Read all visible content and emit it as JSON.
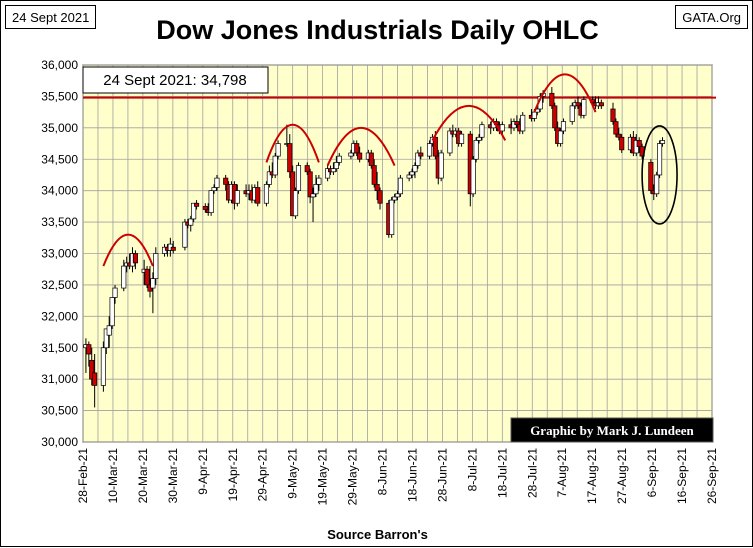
{
  "header": {
    "date": "24 Sept 2021",
    "site": "GATA.Org",
    "title": "Dow Jones Industrials Daily OHLC"
  },
  "annotations": {
    "price_label": "24 Sept 2021: 34,798",
    "credit": "Graphic by Mark J. Lundeen",
    "source": "Source Barron's"
  },
  "colors": {
    "plot_bg": "#ffffcc",
    "grid": "#a0a0a0",
    "up_candle": "#ffffff",
    "down_candle": "#cc0000",
    "candle_edge": "#000000",
    "arc": "#cc0000",
    "resistance_line": "#cc0000",
    "credit_bg": "#000000",
    "credit_text": "#ffffff"
  },
  "chart_data": {
    "type": "ohlc-candlestick",
    "title": "Dow Jones Industrials Daily OHLC",
    "xlabel": "Source Barron's",
    "ylabel": "",
    "ylim": [
      30000,
      36000
    ],
    "y_ticks": [
      "30,000",
      "30,500",
      "31,000",
      "31,500",
      "32,000",
      "32,500",
      "33,000",
      "33,500",
      "34,000",
      "34,500",
      "35,000",
      "35,500",
      "36,000"
    ],
    "y_tick_values": [
      30000,
      30500,
      31000,
      31500,
      32000,
      32500,
      33000,
      33500,
      34000,
      34500,
      35000,
      35500,
      36000
    ],
    "x_ticks": [
      "28-Feb-21",
      "10-Mar-21",
      "20-Mar-21",
      "30-Mar-21",
      "9-Apr-21",
      "19-Apr-21",
      "29-Apr-21",
      "9-May-21",
      "19-May-21",
      "29-May-21",
      "8-Jun-21",
      "18-Jun-21",
      "28-Jun-21",
      "8-Jul-21",
      "18-Jul-21",
      "28-Jul-21",
      "7-Aug-21",
      "17-Aug-21",
      "27-Aug-21",
      "6-Sep-21",
      "16-Sep-21",
      "26-Sep-21"
    ],
    "x_range_days": [
      0,
      216
    ],
    "resistance_level": 35480,
    "last_close": 34798,
    "candles": [
      {
        "d": 1,
        "o": 31500,
        "h": 31650,
        "l": 31100,
        "c": 31550
      },
      {
        "d": 2,
        "o": 31550,
        "h": 31600,
        "l": 31200,
        "c": 31400
      },
      {
        "d": 3,
        "o": 31300,
        "h": 31500,
        "l": 30900,
        "c": 31000
      },
      {
        "d": 4,
        "o": 31100,
        "h": 31400,
        "l": 30550,
        "c": 30900
      },
      {
        "d": 7,
        "o": 30900,
        "h": 31600,
        "l": 30800,
        "c": 31500
      },
      {
        "d": 8,
        "o": 31500,
        "h": 31800,
        "l": 31400,
        "c": 31800
      },
      {
        "d": 9,
        "o": 31700,
        "h": 32000,
        "l": 31500,
        "c": 31850
      },
      {
        "d": 10,
        "o": 31850,
        "h": 32300,
        "l": 31800,
        "c": 32300
      },
      {
        "d": 11,
        "o": 32300,
        "h": 32500,
        "l": 32200,
        "c": 32450
      },
      {
        "d": 14,
        "o": 32450,
        "h": 32900,
        "l": 32400,
        "c": 32800
      },
      {
        "d": 15,
        "o": 32800,
        "h": 32950,
        "l": 32700,
        "c": 32850
      },
      {
        "d": 16,
        "o": 32850,
        "h": 33000,
        "l": 32750,
        "c": 32800
      },
      {
        "d": 17,
        "o": 32800,
        "h": 33100,
        "l": 32700,
        "c": 33000
      },
      {
        "d": 18,
        "o": 33000,
        "h": 33050,
        "l": 32750,
        "c": 32850
      },
      {
        "d": 21,
        "o": 32700,
        "h": 32900,
        "l": 32500,
        "c": 32750
      },
      {
        "d": 22,
        "o": 32750,
        "h": 32800,
        "l": 32450,
        "c": 32500
      },
      {
        "d": 23,
        "o": 32500,
        "h": 32800,
        "l": 32300,
        "c": 32400
      },
      {
        "d": 24,
        "o": 32450,
        "h": 32700,
        "l": 32050,
        "c": 32600
      },
      {
        "d": 25,
        "o": 32600,
        "h": 33100,
        "l": 32500,
        "c": 33000
      },
      {
        "d": 28,
        "o": 33000,
        "h": 33150,
        "l": 32950,
        "c": 33100
      },
      {
        "d": 29,
        "o": 33100,
        "h": 33150,
        "l": 32950,
        "c": 33050
      },
      {
        "d": 30,
        "o": 33050,
        "h": 33250,
        "l": 32950,
        "c": 33150
      },
      {
        "d": 31,
        "o": 33100,
        "h": 33200,
        "l": 33000,
        "c": 33050
      },
      {
        "d": 35,
        "o": 33100,
        "h": 33550,
        "l": 33050,
        "c": 33500
      },
      {
        "d": 36,
        "o": 33500,
        "h": 33550,
        "l": 33400,
        "c": 33450
      },
      {
        "d": 37,
        "o": 33450,
        "h": 33600,
        "l": 33350,
        "c": 33550
      },
      {
        "d": 38,
        "o": 33550,
        "h": 33800,
        "l": 33500,
        "c": 33800
      },
      {
        "d": 39,
        "o": 33800,
        "h": 33850,
        "l": 33700,
        "c": 33750
      },
      {
        "d": 42,
        "o": 33750,
        "h": 33800,
        "l": 33650,
        "c": 33700
      },
      {
        "d": 43,
        "o": 33700,
        "h": 33800,
        "l": 33600,
        "c": 33650
      },
      {
        "d": 44,
        "o": 33650,
        "h": 34000,
        "l": 33600,
        "c": 34000
      },
      {
        "d": 45,
        "o": 34000,
        "h": 34100,
        "l": 33950,
        "c": 34050
      },
      {
        "d": 46,
        "o": 34050,
        "h": 34250,
        "l": 34000,
        "c": 34200
      },
      {
        "d": 49,
        "o": 34200,
        "h": 34250,
        "l": 34000,
        "c": 34100
      },
      {
        "d": 50,
        "o": 34100,
        "h": 34150,
        "l": 33800,
        "c": 33850
      },
      {
        "d": 51,
        "o": 33850,
        "h": 34150,
        "l": 33800,
        "c": 34100
      },
      {
        "d": 52,
        "o": 34100,
        "h": 34150,
        "l": 33700,
        "c": 33800
      },
      {
        "d": 53,
        "o": 33800,
        "h": 34100,
        "l": 33750,
        "c": 34000
      },
      {
        "d": 56,
        "o": 34000,
        "h": 34100,
        "l": 33900,
        "c": 33950
      },
      {
        "d": 57,
        "o": 33950,
        "h": 34100,
        "l": 33850,
        "c": 34000
      },
      {
        "d": 58,
        "o": 34000,
        "h": 34100,
        "l": 33800,
        "c": 33850
      },
      {
        "d": 59,
        "o": 33850,
        "h": 34100,
        "l": 33800,
        "c": 34050
      },
      {
        "d": 60,
        "o": 34050,
        "h": 34150,
        "l": 33750,
        "c": 33800
      },
      {
        "d": 63,
        "o": 33800,
        "h": 34150,
        "l": 33750,
        "c": 34100
      },
      {
        "d": 64,
        "o": 34100,
        "h": 34400,
        "l": 34050,
        "c": 34300
      },
      {
        "d": 65,
        "o": 34300,
        "h": 34450,
        "l": 34200,
        "c": 34250
      },
      {
        "d": 66,
        "o": 34250,
        "h": 34600,
        "l": 34200,
        "c": 34550
      },
      {
        "d": 67,
        "o": 34550,
        "h": 34800,
        "l": 34500,
        "c": 34750
      },
      {
        "d": 70,
        "o": 34750,
        "h": 35050,
        "l": 34700,
        "c": 34750
      },
      {
        "d": 71,
        "o": 34750,
        "h": 34900,
        "l": 34200,
        "c": 34300
      },
      {
        "d": 72,
        "o": 34300,
        "h": 34400,
        "l": 33600,
        "c": 33600
      },
      {
        "d": 73,
        "o": 33600,
        "h": 34050,
        "l": 33550,
        "c": 34000
      },
      {
        "d": 74,
        "o": 34000,
        "h": 34450,
        "l": 33950,
        "c": 34400
      },
      {
        "d": 77,
        "o": 34400,
        "h": 34450,
        "l": 34250,
        "c": 34300
      },
      {
        "d": 78,
        "o": 34300,
        "h": 34350,
        "l": 33800,
        "c": 33900
      },
      {
        "d": 79,
        "o": 33900,
        "h": 34050,
        "l": 33500,
        "c": 33950
      },
      {
        "d": 80,
        "o": 33950,
        "h": 34250,
        "l": 33900,
        "c": 34100
      },
      {
        "d": 81,
        "o": 34100,
        "h": 34250,
        "l": 34000,
        "c": 34200
      },
      {
        "d": 84,
        "o": 34200,
        "h": 34400,
        "l": 34150,
        "c": 34350
      },
      {
        "d": 85,
        "o": 34350,
        "h": 34400,
        "l": 34250,
        "c": 34300
      },
      {
        "d": 86,
        "o": 34300,
        "h": 34450,
        "l": 34250,
        "c": 34350
      },
      {
        "d": 87,
        "o": 34350,
        "h": 34550,
        "l": 34300,
        "c": 34450
      },
      {
        "d": 88,
        "o": 34450,
        "h": 34600,
        "l": 34400,
        "c": 34550
      },
      {
        "d": 92,
        "o": 34550,
        "h": 34650,
        "l": 34500,
        "c": 34600
      },
      {
        "d": 93,
        "o": 34600,
        "h": 34800,
        "l": 34550,
        "c": 34750
      },
      {
        "d": 94,
        "o": 34750,
        "h": 34800,
        "l": 34550,
        "c": 34600
      },
      {
        "d": 95,
        "o": 34600,
        "h": 34700,
        "l": 34450,
        "c": 34500
      },
      {
        "d": 98,
        "o": 34500,
        "h": 34650,
        "l": 34450,
        "c": 34600
      },
      {
        "d": 99,
        "o": 34600,
        "h": 34650,
        "l": 34350,
        "c": 34400
      },
      {
        "d": 100,
        "o": 34400,
        "h": 34500,
        "l": 34050,
        "c": 34100
      },
      {
        "d": 101,
        "o": 34100,
        "h": 34300,
        "l": 33850,
        "c": 34000
      },
      {
        "d": 102,
        "o": 34000,
        "h": 34050,
        "l": 33700,
        "c": 33800
      },
      {
        "d": 105,
        "o": 33800,
        "h": 33850,
        "l": 33250,
        "c": 33300
      },
      {
        "d": 106,
        "o": 33300,
        "h": 33900,
        "l": 33250,
        "c": 33850
      },
      {
        "d": 107,
        "o": 33850,
        "h": 33950,
        "l": 33800,
        "c": 33900
      },
      {
        "d": 108,
        "o": 33900,
        "h": 34000,
        "l": 33850,
        "c": 33950
      },
      {
        "d": 109,
        "o": 33950,
        "h": 34250,
        "l": 33900,
        "c": 34200
      },
      {
        "d": 112,
        "o": 34200,
        "h": 34300,
        "l": 34150,
        "c": 34250
      },
      {
        "d": 113,
        "o": 34250,
        "h": 34350,
        "l": 34200,
        "c": 34300
      },
      {
        "d": 114,
        "o": 34300,
        "h": 34450,
        "l": 34200,
        "c": 34400
      },
      {
        "d": 115,
        "o": 34400,
        "h": 34650,
        "l": 34350,
        "c": 34600
      },
      {
        "d": 116,
        "o": 34600,
        "h": 34700,
        "l": 34500,
        "c": 34550
      },
      {
        "d": 119,
        "o": 34550,
        "h": 34800,
        "l": 34500,
        "c": 34750
      },
      {
        "d": 120,
        "o": 34750,
        "h": 34900,
        "l": 34700,
        "c": 34850
      },
      {
        "d": 121,
        "o": 34850,
        "h": 34950,
        "l": 34500,
        "c": 34550
      },
      {
        "d": 122,
        "o": 34550,
        "h": 34650,
        "l": 34100,
        "c": 34200
      },
      {
        "d": 123,
        "o": 34200,
        "h": 34650,
        "l": 34150,
        "c": 34600
      },
      {
        "d": 126,
        "o": 34600,
        "h": 35000,
        "l": 34550,
        "c": 34950
      },
      {
        "d": 127,
        "o": 34950,
        "h": 35050,
        "l": 34850,
        "c": 34900
      },
      {
        "d": 128,
        "o": 34900,
        "h": 35000,
        "l": 34850,
        "c": 34950
      },
      {
        "d": 129,
        "o": 34950,
        "h": 35000,
        "l": 34700,
        "c": 34750
      },
      {
        "d": 130,
        "o": 34750,
        "h": 34950,
        "l": 34700,
        "c": 34900
      },
      {
        "d": 133,
        "o": 34900,
        "h": 34950,
        "l": 33750,
        "c": 33950
      },
      {
        "d": 134,
        "o": 33950,
        "h": 34550,
        "l": 33900,
        "c": 34500
      },
      {
        "d": 135,
        "o": 34500,
        "h": 34850,
        "l": 34450,
        "c": 34800
      },
      {
        "d": 136,
        "o": 34800,
        "h": 34900,
        "l": 34750,
        "c": 34850
      },
      {
        "d": 137,
        "o": 34850,
        "h": 35100,
        "l": 34800,
        "c": 35050
      },
      {
        "d": 140,
        "o": 35050,
        "h": 35100,
        "l": 34900,
        "c": 35000
      },
      {
        "d": 141,
        "o": 35000,
        "h": 35150,
        "l": 34950,
        "c": 35100
      },
      {
        "d": 142,
        "o": 35100,
        "h": 35150,
        "l": 34950,
        "c": 35050
      },
      {
        "d": 143,
        "o": 35050,
        "h": 35100,
        "l": 34900,
        "c": 34950
      },
      {
        "d": 144,
        "o": 34950,
        "h": 35100,
        "l": 34900,
        "c": 35050
      },
      {
        "d": 147,
        "o": 35050,
        "h": 35150,
        "l": 34900,
        "c": 35000
      },
      {
        "d": 148,
        "o": 35000,
        "h": 35150,
        "l": 34950,
        "c": 35100
      },
      {
        "d": 149,
        "o": 35100,
        "h": 35200,
        "l": 35000,
        "c": 35050
      },
      {
        "d": 150,
        "o": 35050,
        "h": 35150,
        "l": 34900,
        "c": 34950
      },
      {
        "d": 151,
        "o": 34950,
        "h": 35250,
        "l": 34900,
        "c": 35200
      },
      {
        "d": 154,
        "o": 35200,
        "h": 35300,
        "l": 35100,
        "c": 35150
      },
      {
        "d": 155,
        "o": 35150,
        "h": 35300,
        "l": 35100,
        "c": 35250
      },
      {
        "d": 156,
        "o": 35250,
        "h": 35350,
        "l": 35200,
        "c": 35300
      },
      {
        "d": 157,
        "o": 35300,
        "h": 35550,
        "l": 35250,
        "c": 35500
      },
      {
        "d": 158,
        "o": 35500,
        "h": 35600,
        "l": 35400,
        "c": 35550
      },
      {
        "d": 161,
        "o": 35550,
        "h": 35650,
        "l": 35300,
        "c": 35350
      },
      {
        "d": 162,
        "o": 35350,
        "h": 35400,
        "l": 34950,
        "c": 35000
      },
      {
        "d": 163,
        "o": 35000,
        "h": 35100,
        "l": 34700,
        "c": 34750
      },
      {
        "d": 164,
        "o": 34750,
        "h": 35000,
        "l": 34700,
        "c": 34950
      },
      {
        "d": 165,
        "o": 34950,
        "h": 35150,
        "l": 34900,
        "c": 35100
      },
      {
        "d": 168,
        "o": 35100,
        "h": 35400,
        "l": 35050,
        "c": 35350
      },
      {
        "d": 169,
        "o": 35350,
        "h": 35450,
        "l": 35300,
        "c": 35400
      },
      {
        "d": 170,
        "o": 35400,
        "h": 35500,
        "l": 35300,
        "c": 35350
      },
      {
        "d": 171,
        "o": 35350,
        "h": 35400,
        "l": 35150,
        "c": 35200
      },
      {
        "d": 172,
        "o": 35200,
        "h": 35500,
        "l": 35150,
        "c": 35450
      },
      {
        "d": 175,
        "o": 35450,
        "h": 35500,
        "l": 35350,
        "c": 35400
      },
      {
        "d": 176,
        "o": 35400,
        "h": 35500,
        "l": 35300,
        "c": 35350
      },
      {
        "d": 177,
        "o": 35350,
        "h": 35500,
        "l": 35300,
        "c": 35400
      },
      {
        "d": 178,
        "o": 35400,
        "h": 35450,
        "l": 35300,
        "c": 35350
      },
      {
        "d": 182,
        "o": 35300,
        "h": 35400,
        "l": 35050,
        "c": 35100
      },
      {
        "d": 183,
        "o": 35100,
        "h": 35150,
        "l": 34850,
        "c": 34900
      },
      {
        "d": 184,
        "o": 34900,
        "h": 35000,
        "l": 34800,
        "c": 34850
      },
      {
        "d": 185,
        "o": 34850,
        "h": 34900,
        "l": 34600,
        "c": 34650
      },
      {
        "d": 188,
        "o": 34650,
        "h": 34900,
        "l": 34600,
        "c": 34850
      },
      {
        "d": 189,
        "o": 34850,
        "h": 34950,
        "l": 34550,
        "c": 34600
      },
      {
        "d": 190,
        "o": 34600,
        "h": 34900,
        "l": 34550,
        "c": 34800
      },
      {
        "d": 191,
        "o": 34800,
        "h": 34850,
        "l": 34600,
        "c": 34700
      },
      {
        "d": 192,
        "o": 34700,
        "h": 34750,
        "l": 34500,
        "c": 34550
      },
      {
        "d": 195,
        "o": 34450,
        "h": 34500,
        "l": 33950,
        "c": 34000
      },
      {
        "d": 196,
        "o": 34000,
        "h": 34100,
        "l": 33850,
        "c": 33950
      },
      {
        "d": 197,
        "o": 33950,
        "h": 34300,
        "l": 33900,
        "c": 34250
      },
      {
        "d": 198,
        "o": 34250,
        "h": 34800,
        "l": 34200,
        "c": 34750
      },
      {
        "d": 199,
        "o": 34750,
        "h": 34850,
        "l": 34700,
        "c": 34798
      }
    ],
    "arcs": [
      {
        "start": 7,
        "end": 24,
        "level": 32800,
        "peak": 33300
      },
      {
        "start": 63,
        "end": 81,
        "level": 34450,
        "peak": 35050
      },
      {
        "start": 84,
        "end": 107,
        "level": 34400,
        "peak": 35000
      },
      {
        "start": 120,
        "end": 145,
        "level": 34800,
        "peak": 35350
      },
      {
        "start": 155,
        "end": 176,
        "level": 35250,
        "peak": 35850
      }
    ],
    "highlight_ellipse": {
      "center_day": 198,
      "center_value": 34250,
      "half_width_days": 6,
      "half_height_value": 780
    }
  }
}
